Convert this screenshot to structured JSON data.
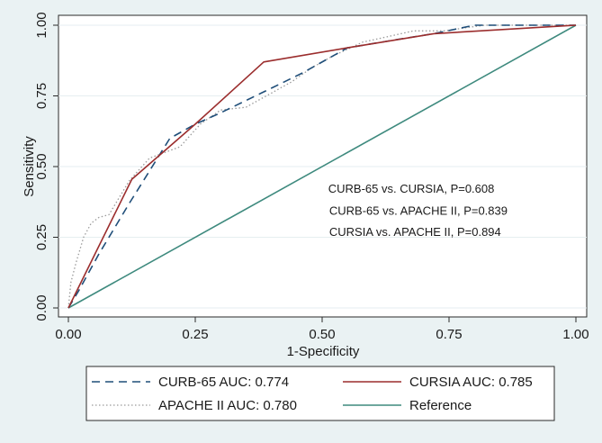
{
  "chart_data": {
    "type": "line",
    "title": "",
    "xlabel": "1-Specificity",
    "ylabel": "Sensitivity",
    "xlim": [
      0,
      1
    ],
    "ylim": [
      0,
      1
    ],
    "xticks": [
      0,
      0.25,
      0.5,
      0.75,
      1
    ],
    "xtick_labels": [
      "0.00",
      "0.25",
      "0.50",
      "0.75",
      "1.00"
    ],
    "yticks": [
      0,
      0.25,
      0.5,
      0.75,
      1
    ],
    "ytick_labels": [
      "0.00",
      "0.25",
      "0.50",
      "0.75",
      "1.00"
    ],
    "grid": "horizontal",
    "legend_position": "bottom",
    "series": [
      {
        "name": "CURB-65 AUC: 0.774",
        "color": "#1f4e79",
        "dash": "dashed",
        "x": [
          0,
          0.02,
          0.06,
          0.12,
          0.2,
          0.23,
          0.25,
          0.3,
          0.38,
          0.46,
          0.55,
          0.65,
          0.72,
          0.8,
          1
        ],
        "y": [
          0,
          0.06,
          0.19,
          0.37,
          0.6,
          0.63,
          0.65,
          0.69,
          0.76,
          0.83,
          0.92,
          0.95,
          0.97,
          1,
          1
        ]
      },
      {
        "name": "CURSIA AUC: 0.785",
        "color": "#9b2d2d",
        "dash": "solid",
        "x": [
          0,
          0.125,
          0.25,
          0.385,
          0.55,
          0.72,
          1
        ],
        "y": [
          0,
          0.455,
          0.65,
          0.87,
          0.92,
          0.97,
          1
        ]
      },
      {
        "name": "APACHE II AUC: 0.780",
        "color": "#9a9a9a",
        "dash": "dotted",
        "x": [
          0,
          0.005,
          0.015,
          0.03,
          0.045,
          0.06,
          0.08,
          0.1,
          0.12,
          0.16,
          0.19,
          0.22,
          0.26,
          0.3,
          0.35,
          0.38,
          0.4,
          0.44,
          0.48,
          0.52,
          0.58,
          0.63,
          0.68,
          0.74,
          0.78,
          0.82,
          0.88,
          0.94,
          1
        ],
        "y": [
          0,
          0.09,
          0.16,
          0.25,
          0.3,
          0.32,
          0.33,
          0.39,
          0.45,
          0.53,
          0.55,
          0.57,
          0.65,
          0.7,
          0.71,
          0.74,
          0.76,
          0.8,
          0.85,
          0.89,
          0.94,
          0.96,
          0.98,
          0.98,
          0.99,
          1,
          1,
          1,
          1
        ]
      },
      {
        "name": "Reference",
        "color": "#3e8a7e",
        "dash": "solid",
        "x": [
          0,
          1
        ],
        "y": [
          0,
          1
        ]
      }
    ],
    "annotations": [
      {
        "text": "CURB-65 vs. CURSIA, P=0.608",
        "x": 0.512,
        "y": 0.408
      },
      {
        "text": "CURB-65 vs. APACHE II, P=0.839",
        "x": 0.514,
        "y": 0.33
      },
      {
        "text": "CURSIA vs. APACHE II, P=0.894",
        "x": 0.514,
        "y": 0.255
      }
    ]
  }
}
